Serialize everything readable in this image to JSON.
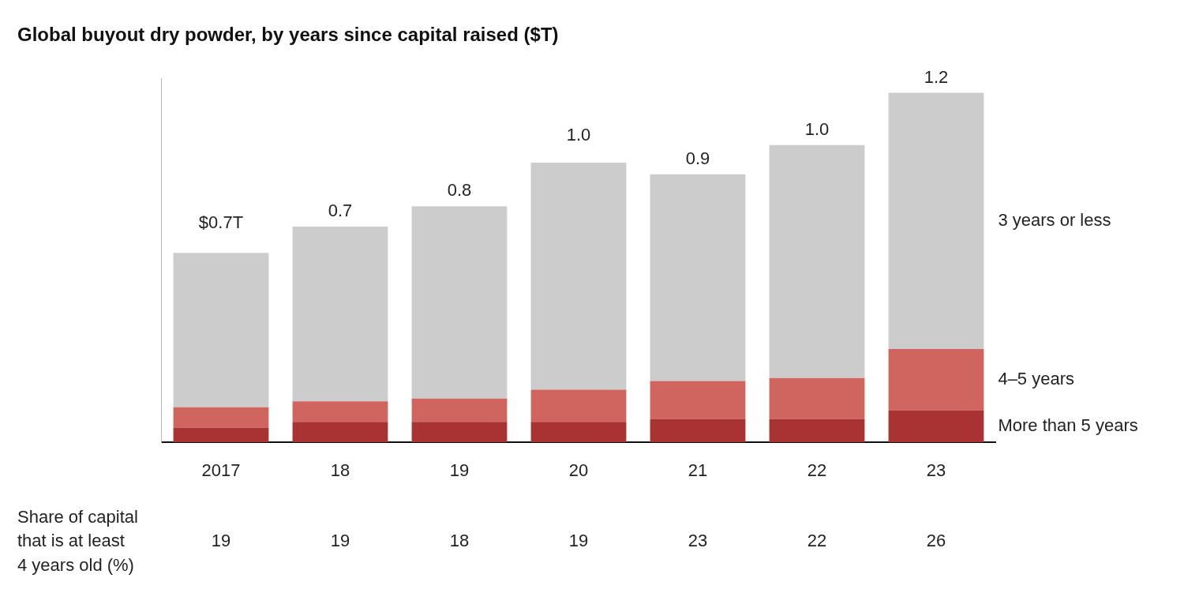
{
  "chart_data": {
    "type": "bar",
    "title": "Global buyout dry powder, by years since capital raised ($T)",
    "categories": [
      "2017",
      "18",
      "19",
      "20",
      "21",
      "22",
      "23"
    ],
    "series": [
      {
        "name": "More than 5 years",
        "color": "#a93232",
        "values": [
          0.05,
          0.07,
          0.07,
          0.07,
          0.08,
          0.08,
          0.11
        ]
      },
      {
        "name": "4–5 years",
        "color": "#d0655f",
        "values": [
          0.07,
          0.07,
          0.08,
          0.11,
          0.13,
          0.14,
          0.21
        ]
      },
      {
        "name": "3 years or less",
        "color": "#cccccc",
        "values": [
          0.53,
          0.6,
          0.66,
          0.78,
          0.71,
          0.8,
          0.88
        ]
      }
    ],
    "totals": [
      0.7,
      0.7,
      0.8,
      1.0,
      0.9,
      1.0,
      1.2
    ],
    "total_labels": [
      "$0.7T",
      "0.7",
      "0.8",
      "1.0",
      "0.9",
      "1.0",
      "1.2"
    ],
    "share_label": [
      "Share of capital",
      "that is at least",
      "4 years old (%)"
    ],
    "share_values": [
      19,
      19,
      18,
      19,
      23,
      22,
      26
    ],
    "ylim": [
      0,
      1.25
    ],
    "yticks": [],
    "stacked": true,
    "grid": false,
    "tick_labels": "x"
  }
}
